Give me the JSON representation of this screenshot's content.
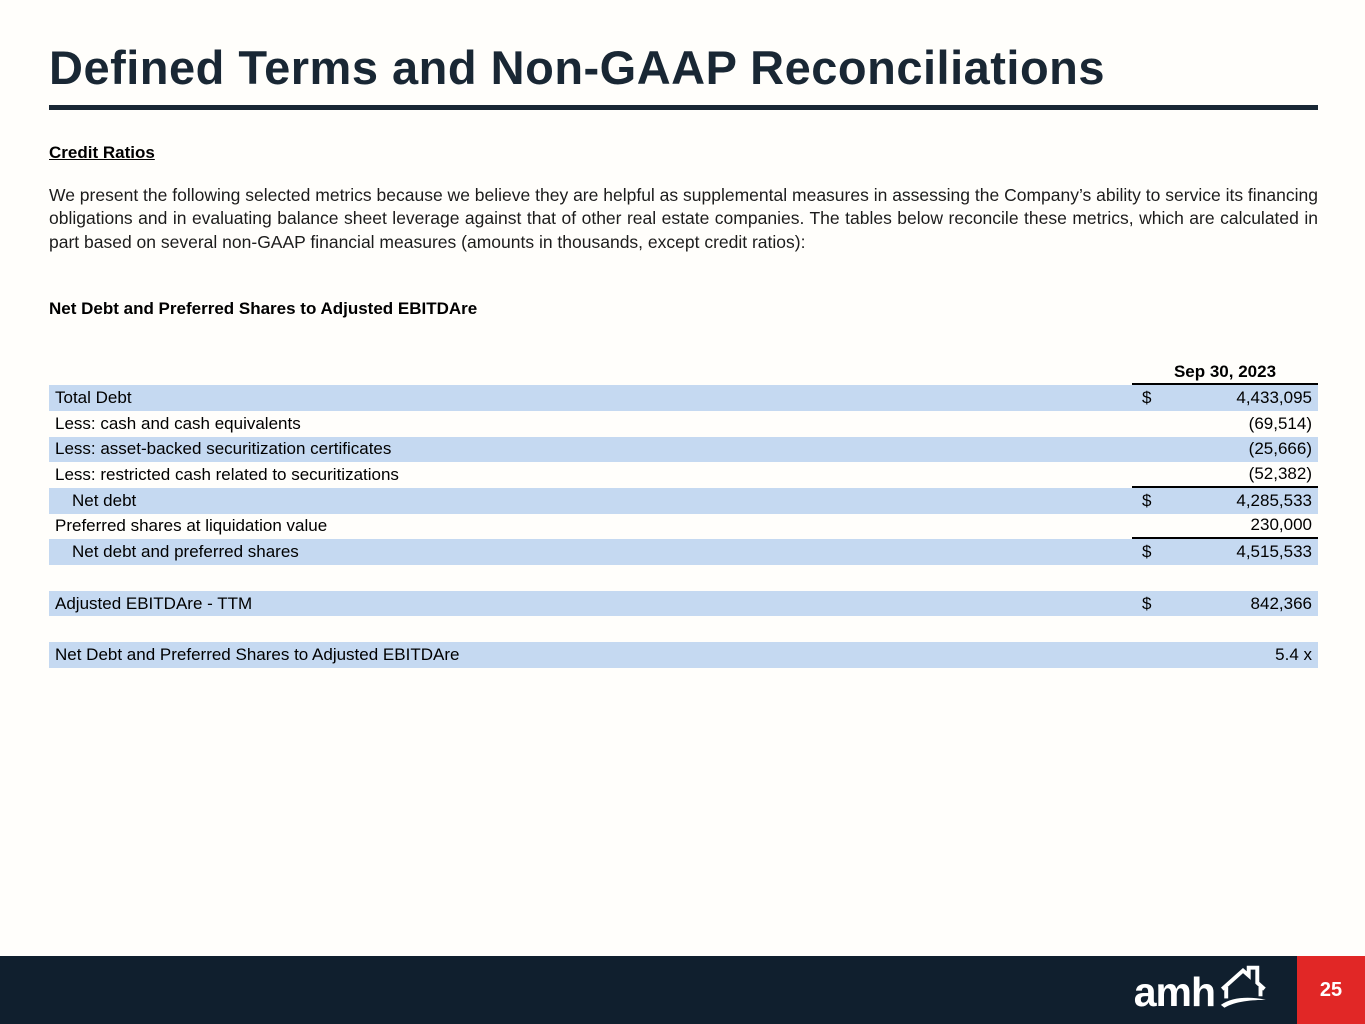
{
  "slide": {
    "title": "Defined Terms and Non-GAAP Reconciliations",
    "section_heading": "Credit Ratios",
    "paragraph": "We present the following selected metrics because we believe they are helpful as supplemental measures in assessing the Company’s ability to service its financing obligations and in evaluating balance sheet leverage against that of other real estate companies. The tables below reconcile these metrics, which are calculated in part based on several non-GAAP financial measures (amounts in thousands, except credit ratios):",
    "table_title": "Net Debt and Preferred Shares to Adjusted EBITDAre"
  },
  "table": {
    "column_header": "Sep 30, 2023",
    "rows": [
      {
        "label": "Total Debt",
        "dollar": "$",
        "value": "4,433,095",
        "shaded": true,
        "indent": false,
        "rule_below": false
      },
      {
        "label": "Less: cash and cash equivalents",
        "dollar": "",
        "value": "(69,514)",
        "shaded": false,
        "indent": false,
        "rule_below": false
      },
      {
        "label": "Less: asset-backed securitization certificates",
        "dollar": "",
        "value": "(25,666)",
        "shaded": true,
        "indent": false,
        "rule_below": false
      },
      {
        "label": "Less: restricted cash related to securitizations",
        "dollar": "",
        "value": "(52,382)",
        "shaded": false,
        "indent": false,
        "rule_below": true
      },
      {
        "label": "Net debt",
        "dollar": "$",
        "value": "4,285,533",
        "shaded": true,
        "indent": true,
        "rule_below": false
      },
      {
        "label": "Preferred shares at liquidation value",
        "dollar": "",
        "value": "230,000",
        "shaded": false,
        "indent": false,
        "rule_below": true
      },
      {
        "label": "Net debt and preferred shares",
        "dollar": "$",
        "value": "4,515,533",
        "shaded": true,
        "indent": true,
        "rule_below": false
      },
      {
        "spacer": true
      },
      {
        "label": "Adjusted EBITDAre - TTM",
        "dollar": "$",
        "value": "842,366",
        "shaded": true,
        "indent": false,
        "rule_below": false
      },
      {
        "spacer": true
      },
      {
        "label": "Net Debt and Preferred Shares to Adjusted EBITDAre",
        "dollar": "",
        "value": "5.4 x",
        "shaded": true,
        "indent": false,
        "rule_below": false
      }
    ]
  },
  "footer": {
    "logo_text": "amh",
    "page_number": "25"
  },
  "colors": {
    "navy_title": "#192734",
    "footer_bar": "#101f2e",
    "row_highlight": "#c5d9f1",
    "page_badge_red": "#e12726"
  }
}
